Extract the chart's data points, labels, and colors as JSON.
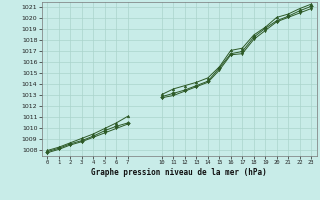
{
  "title": "Graphe pression niveau de la mer (hPa)",
  "bg_color": "#c8ece8",
  "grid_color": "#aad4cc",
  "line_color": "#2d5a27",
  "ylim": [
    1007.5,
    1021.5
  ],
  "xlim": [
    -0.5,
    23.5
  ],
  "yticks": [
    1008,
    1009,
    1010,
    1011,
    1012,
    1013,
    1014,
    1015,
    1016,
    1017,
    1018,
    1019,
    1020,
    1021
  ],
  "xticks": [
    0,
    1,
    2,
    3,
    4,
    5,
    6,
    7,
    10,
    11,
    12,
    13,
    14,
    15,
    16,
    17,
    18,
    19,
    20,
    21,
    22,
    23
  ],
  "line1_x": [
    0,
    1,
    2,
    3,
    4,
    5,
    6,
    7,
    10,
    11,
    12,
    13,
    14,
    15,
    16,
    17,
    18,
    19,
    20,
    21,
    22,
    23
  ],
  "line1_y": [
    1007.9,
    1008.2,
    1008.6,
    1008.9,
    1009.3,
    1009.8,
    1010.2,
    1010.5,
    1012.9,
    1013.2,
    1013.5,
    1013.9,
    1014.3,
    1015.5,
    1016.8,
    1017.0,
    1018.3,
    1019.1,
    1019.8,
    1020.2,
    1020.7,
    1021.1
  ],
  "line2_x": [
    0,
    1,
    2,
    3,
    4,
    5,
    6,
    7,
    10,
    11,
    12,
    13,
    14,
    15,
    16,
    17,
    18,
    19,
    20,
    21,
    22,
    23
  ],
  "line2_y": [
    1008.0,
    1008.3,
    1008.7,
    1009.1,
    1009.5,
    1010.0,
    1010.5,
    1011.1,
    1013.1,
    1013.6,
    1013.9,
    1014.2,
    1014.6,
    1015.6,
    1017.1,
    1017.3,
    1018.5,
    1019.2,
    1020.1,
    1020.4,
    1020.9,
    1021.3
  ],
  "line3_x": [
    0,
    1,
    2,
    3,
    4,
    5,
    6,
    7,
    10,
    11,
    12,
    13,
    14,
    15,
    16,
    17,
    18,
    19,
    20,
    21,
    22,
    23
  ],
  "line3_y": [
    1007.8,
    1008.1,
    1008.5,
    1008.8,
    1009.2,
    1009.6,
    1010.0,
    1010.4,
    1012.8,
    1013.0,
    1013.4,
    1013.8,
    1014.2,
    1015.3,
    1016.7,
    1016.8,
    1018.1,
    1018.9,
    1019.7,
    1020.1,
    1020.5,
    1020.9
  ]
}
